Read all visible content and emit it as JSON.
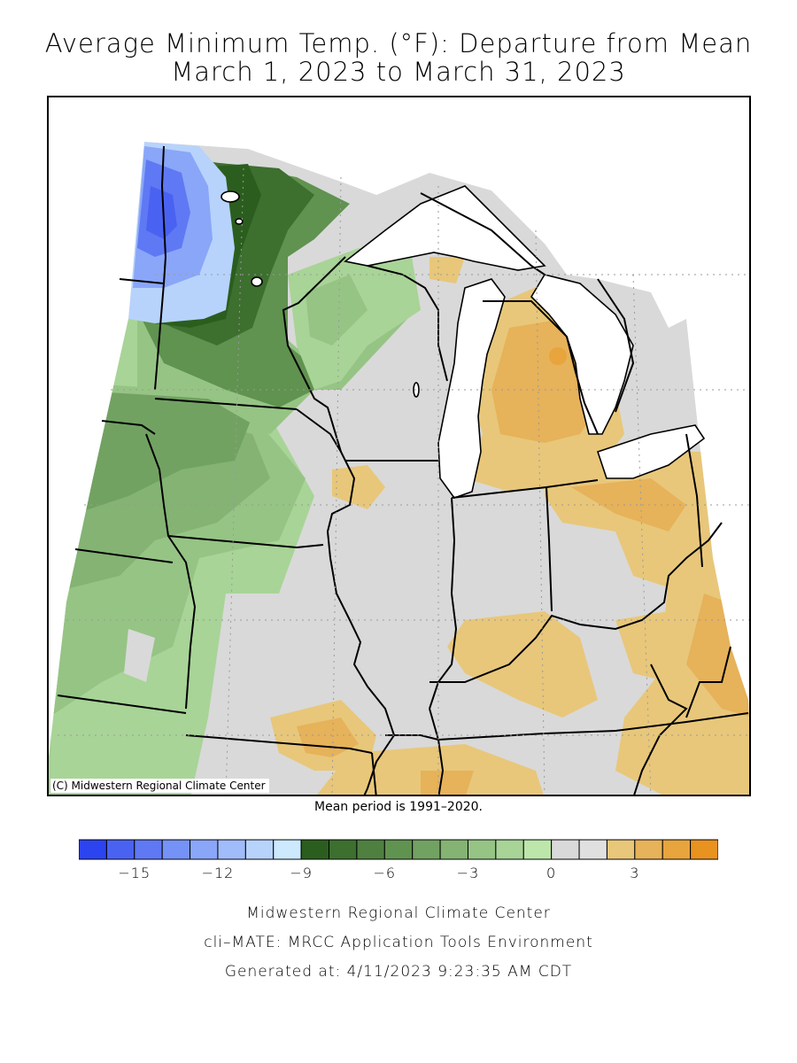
{
  "title": {
    "line1": "Average Minimum Temp. (°F): Departure from Mean",
    "line2": "March 1, 2023 to March 31, 2023"
  },
  "map": {
    "copyright": "(C) Midwestern Regional Climate Center",
    "region": "Upper Midwest / Great Lakes"
  },
  "mean_period": "Mean period is 1991–2020.",
  "legend": {
    "colors": [
      "#2b44f0",
      "#4a62f2",
      "#5f79f4",
      "#7592f6",
      "#8aa6f8",
      "#a1bcfa",
      "#b7d3fc",
      "#cce9fd",
      "#2b5e1e",
      "#3d6f2f",
      "#4f8040",
      "#609250",
      "#72a262",
      "#84b374",
      "#96c485",
      "#a8d497",
      "#bde6aa",
      "#d9d9d9",
      "#e0e0e0",
      "#e8c77a",
      "#e6b25a",
      "#e8a43d",
      "#e89220"
    ],
    "ticks": [
      {
        "label": "−15",
        "index": 2
      },
      {
        "label": "−12",
        "index": 5
      },
      {
        "label": "−9",
        "index": 8
      },
      {
        "label": "−6",
        "index": 11
      },
      {
        "label": "−3",
        "index": 14
      },
      {
        "label": "0",
        "index": 17
      },
      {
        "label": "3",
        "index": 20
      }
    ]
  },
  "footer": {
    "line1": "Midwestern Regional Climate Center",
    "line2": "cli–MATE: MRCC Application Tools Environment",
    "line3": "Generated at: 4/11/2023 9:23:35 AM CDT"
  }
}
